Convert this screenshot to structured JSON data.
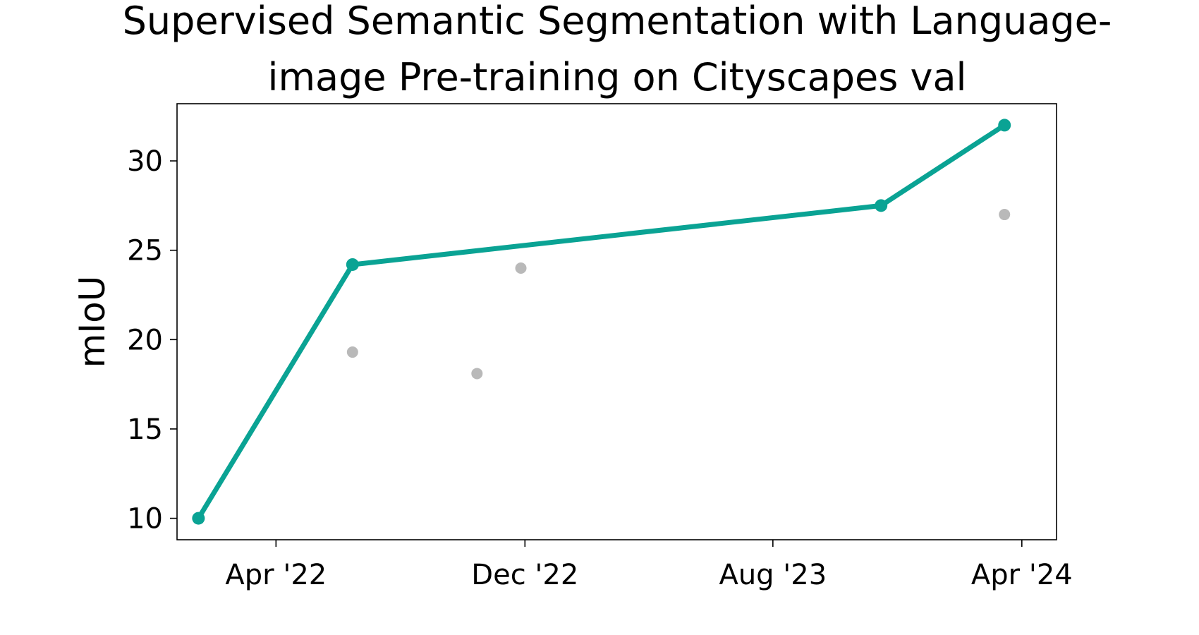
{
  "chart_data": {
    "type": "line",
    "title_lines": [
      "Supervised Semantic Segmentation with Language-",
      "image Pre-training on Cityscapes val"
    ],
    "xlabel": "",
    "ylabel": "mIoU",
    "x_axis": {
      "kind": "date",
      "range": [
        "2021-12-25",
        "2024-05-05"
      ],
      "ticks": [
        {
          "date": "2022-04-01",
          "label": "Apr '22"
        },
        {
          "date": "2022-12-01",
          "label": "Dec '22"
        },
        {
          "date": "2023-08-01",
          "label": "Aug '23"
        },
        {
          "date": "2024-04-01",
          "label": "Apr '24"
        }
      ]
    },
    "y_axis": {
      "range": [
        8.8,
        33.2
      ],
      "ticks": [
        10,
        15,
        20,
        25,
        30
      ]
    },
    "grid": false,
    "series": [
      {
        "role": "state-of-the-art",
        "color": "#0aa394",
        "style": "line-with-markers",
        "points": [
          {
            "x": "2022-01-15",
            "y": 10.0
          },
          {
            "x": "2022-06-15",
            "y": 24.2
          },
          {
            "x": "2023-11-15",
            "y": 27.5
          },
          {
            "x": "2024-03-15",
            "y": 32.0
          }
        ]
      },
      {
        "role": "other-models",
        "color": "#b9b9b9",
        "style": "markers",
        "points": [
          {
            "x": "2022-06-15",
            "y": 19.3
          },
          {
            "x": "2022-10-15",
            "y": 18.1
          },
          {
            "x": "2022-11-27",
            "y": 24.0
          },
          {
            "x": "2024-03-15",
            "y": 27.0
          }
        ]
      }
    ]
  }
}
